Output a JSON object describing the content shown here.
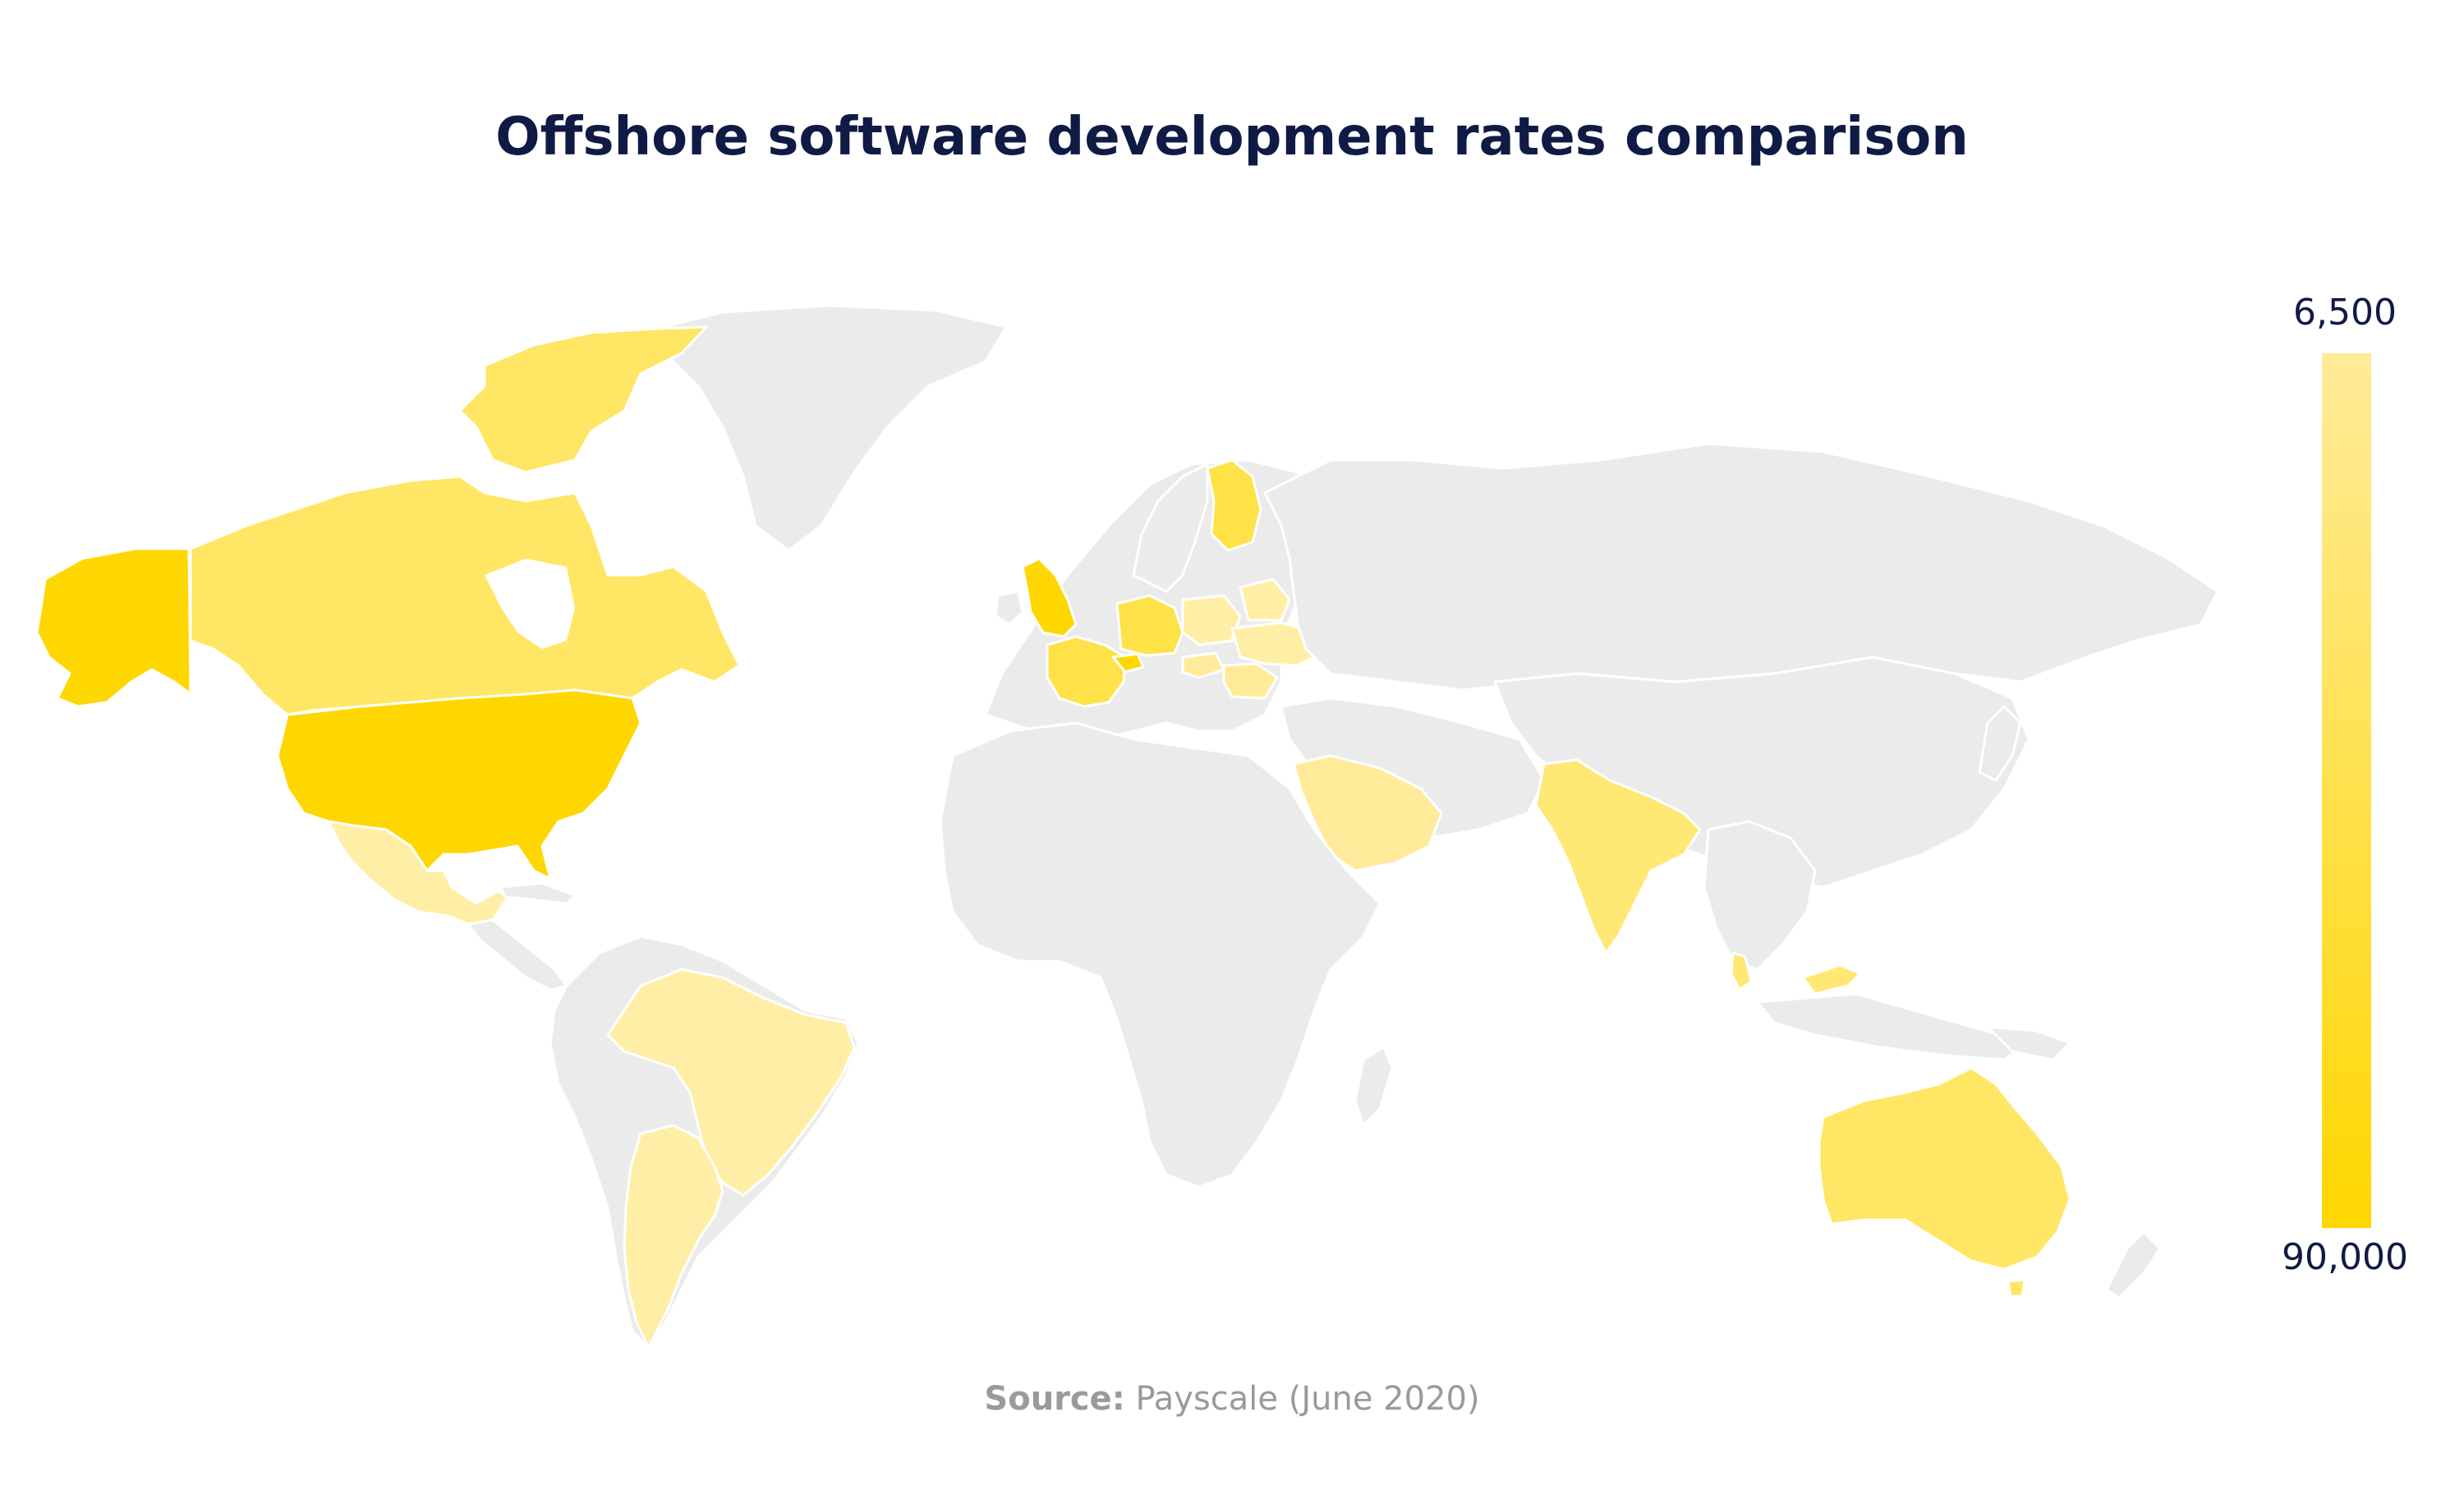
{
  "title": "Offshore software development rates comparison",
  "source": {
    "label": "Source:",
    "text": "Payscale (June 2020)"
  },
  "legend": {
    "top_value": "6,500",
    "bottom_value": "90,000",
    "color_light": "#FFEB99",
    "color_dark": "#FFD700"
  },
  "colors": {
    "no_data": "#EBEBEB",
    "border": "#FFFFFF",
    "text_dark": "#0F1A45",
    "text_source": "#9A9A9A"
  },
  "chart_data": {
    "type": "choropleth",
    "value_range": [
      6500,
      90000
    ],
    "highlighted_countries": [
      {
        "name": "United States",
        "color": "#FFD700"
      },
      {
        "name": "Alaska",
        "color": "#FFD700"
      },
      {
        "name": "Canada",
        "color": "#FFE664"
      },
      {
        "name": "Greenland",
        "color": "#EBEBEB"
      },
      {
        "name": "Mexico",
        "color": "#FFEFA6"
      },
      {
        "name": "Brazil",
        "color": "#FFEFA6"
      },
      {
        "name": "Argentina",
        "color": "#FFEFA6"
      },
      {
        "name": "United Kingdom",
        "color": "#FFD700"
      },
      {
        "name": "France",
        "color": "#FFE247"
      },
      {
        "name": "Switzerland",
        "color": "#FFD700"
      },
      {
        "name": "Germany",
        "color": "#FFE247"
      },
      {
        "name": "Poland",
        "color": "#FFEFA6"
      },
      {
        "name": "Ukraine",
        "color": "#FFEFA6"
      },
      {
        "name": "Belarus",
        "color": "#FFEFA6"
      },
      {
        "name": "Romania",
        "color": "#FFEB99"
      },
      {
        "name": "Hungary",
        "color": "#FFEB99"
      },
      {
        "name": "Finland",
        "color": "#FFE247"
      },
      {
        "name": "Saudi Arabia",
        "color": "#FFEB99"
      },
      {
        "name": "India",
        "color": "#FFE873"
      },
      {
        "name": "Malaysia",
        "color": "#FFE873"
      },
      {
        "name": "Australia",
        "color": "#FFE664"
      }
    ]
  }
}
